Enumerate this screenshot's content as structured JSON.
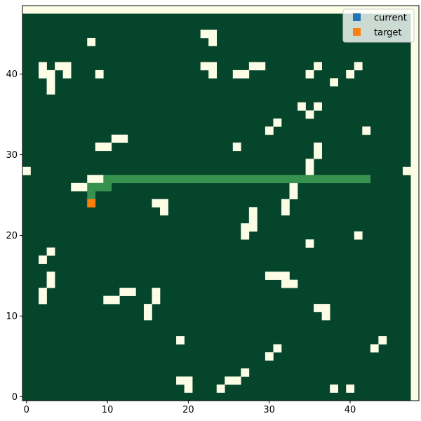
{
  "chart_data": {
    "type": "heatmap",
    "title": "",
    "xlabel": "",
    "ylabel": "",
    "xlim": [
      -0.5,
      48.5
    ],
    "ylim": [
      -0.5,
      48.5
    ],
    "x_ticks": [
      0,
      10,
      20,
      30,
      40
    ],
    "y_ticks": [
      0,
      10,
      20,
      30,
      40
    ],
    "grid": false,
    "legend_position": "top-right",
    "colors": {
      "background": "#fdfde6",
      "free": "#04452b",
      "obstacle": "#fdfde6",
      "path": "#38924f",
      "current": "#1f77b4",
      "target": "#ff7f0e"
    },
    "legend": [
      {
        "label": "current",
        "color": "#1f77b4"
      },
      {
        "label": "target",
        "color": "#ff7f0e"
      }
    ],
    "current": null,
    "target": [
      8,
      24
    ],
    "path": [
      [
        8,
        25
      ],
      [
        8,
        26
      ],
      [
        9,
        26
      ],
      [
        10,
        26
      ],
      [
        10,
        27
      ],
      [
        11,
        27
      ],
      [
        12,
        27
      ],
      [
        13,
        27
      ],
      [
        14,
        27
      ],
      [
        15,
        27
      ],
      [
        16,
        27
      ],
      [
        17,
        27
      ],
      [
        18,
        27
      ],
      [
        19,
        27
      ],
      [
        20,
        27
      ],
      [
        21,
        27
      ],
      [
        22,
        27
      ],
      [
        23,
        27
      ],
      [
        24,
        27
      ],
      [
        25,
        27
      ],
      [
        26,
        27
      ],
      [
        27,
        27
      ],
      [
        28,
        27
      ],
      [
        29,
        27
      ],
      [
        30,
        27
      ],
      [
        31,
        27
      ],
      [
        32,
        27
      ],
      [
        33,
        27
      ],
      [
        34,
        27
      ],
      [
        35,
        27
      ],
      [
        36,
        27
      ],
      [
        37,
        27
      ],
      [
        38,
        27
      ],
      [
        39,
        27
      ],
      [
        40,
        27
      ],
      [
        41,
        27
      ],
      [
        42,
        27
      ]
    ],
    "obstacles": [
      [
        22,
        45
      ],
      [
        23,
        45
      ],
      [
        23,
        44
      ],
      [
        8,
        44
      ],
      [
        2,
        41
      ],
      [
        4,
        41
      ],
      [
        5,
        41
      ],
      [
        2,
        40
      ],
      [
        3,
        40
      ],
      [
        5,
        40
      ],
      [
        3,
        39
      ],
      [
        3,
        38
      ],
      [
        9,
        40
      ],
      [
        22,
        41
      ],
      [
        23,
        41
      ],
      [
        23,
        40
      ],
      [
        26,
        40
      ],
      [
        27,
        40
      ],
      [
        28,
        41
      ],
      [
        29,
        41
      ],
      [
        36,
        41
      ],
      [
        35,
        40
      ],
      [
        38,
        39
      ],
      [
        41,
        41
      ],
      [
        40,
        40
      ],
      [
        34,
        36
      ],
      [
        36,
        36
      ],
      [
        35,
        35
      ],
      [
        31,
        34
      ],
      [
        30,
        33
      ],
      [
        42,
        33
      ],
      [
        11,
        32
      ],
      [
        12,
        32
      ],
      [
        9,
        31
      ],
      [
        10,
        31
      ],
      [
        26,
        31
      ],
      [
        36,
        31
      ],
      [
        36,
        30
      ],
      [
        35,
        29
      ],
      [
        35,
        28
      ],
      [
        0,
        28
      ],
      [
        47,
        28
      ],
      [
        8,
        27
      ],
      [
        9,
        27
      ],
      [
        6,
        26
      ],
      [
        7,
        26
      ],
      [
        33,
        26
      ],
      [
        33,
        25
      ],
      [
        32,
        24
      ],
      [
        32,
        23
      ],
      [
        16,
        24
      ],
      [
        17,
        24
      ],
      [
        17,
        23
      ],
      [
        28,
        23
      ],
      [
        28,
        22
      ],
      [
        27,
        21
      ],
      [
        28,
        21
      ],
      [
        27,
        20
      ],
      [
        35,
        19
      ],
      [
        41,
        20
      ],
      [
        3,
        18
      ],
      [
        2,
        17
      ],
      [
        3,
        15
      ],
      [
        3,
        14
      ],
      [
        2,
        13
      ],
      [
        2,
        12
      ],
      [
        30,
        15
      ],
      [
        31,
        15
      ],
      [
        32,
        15
      ],
      [
        32,
        14
      ],
      [
        33,
        14
      ],
      [
        12,
        13
      ],
      [
        13,
        13
      ],
      [
        10,
        12
      ],
      [
        11,
        12
      ],
      [
        16,
        13
      ],
      [
        16,
        12
      ],
      [
        15,
        11
      ],
      [
        15,
        10
      ],
      [
        36,
        11
      ],
      [
        37,
        11
      ],
      [
        37,
        10
      ],
      [
        19,
        7
      ],
      [
        44,
        7
      ],
      [
        43,
        6
      ],
      [
        31,
        6
      ],
      [
        30,
        5
      ],
      [
        27,
        3
      ],
      [
        25,
        2
      ],
      [
        26,
        2
      ],
      [
        19,
        2
      ],
      [
        20,
        2
      ],
      [
        20,
        1
      ],
      [
        24,
        1
      ],
      [
        38,
        1
      ],
      [
        40,
        1
      ]
    ]
  }
}
